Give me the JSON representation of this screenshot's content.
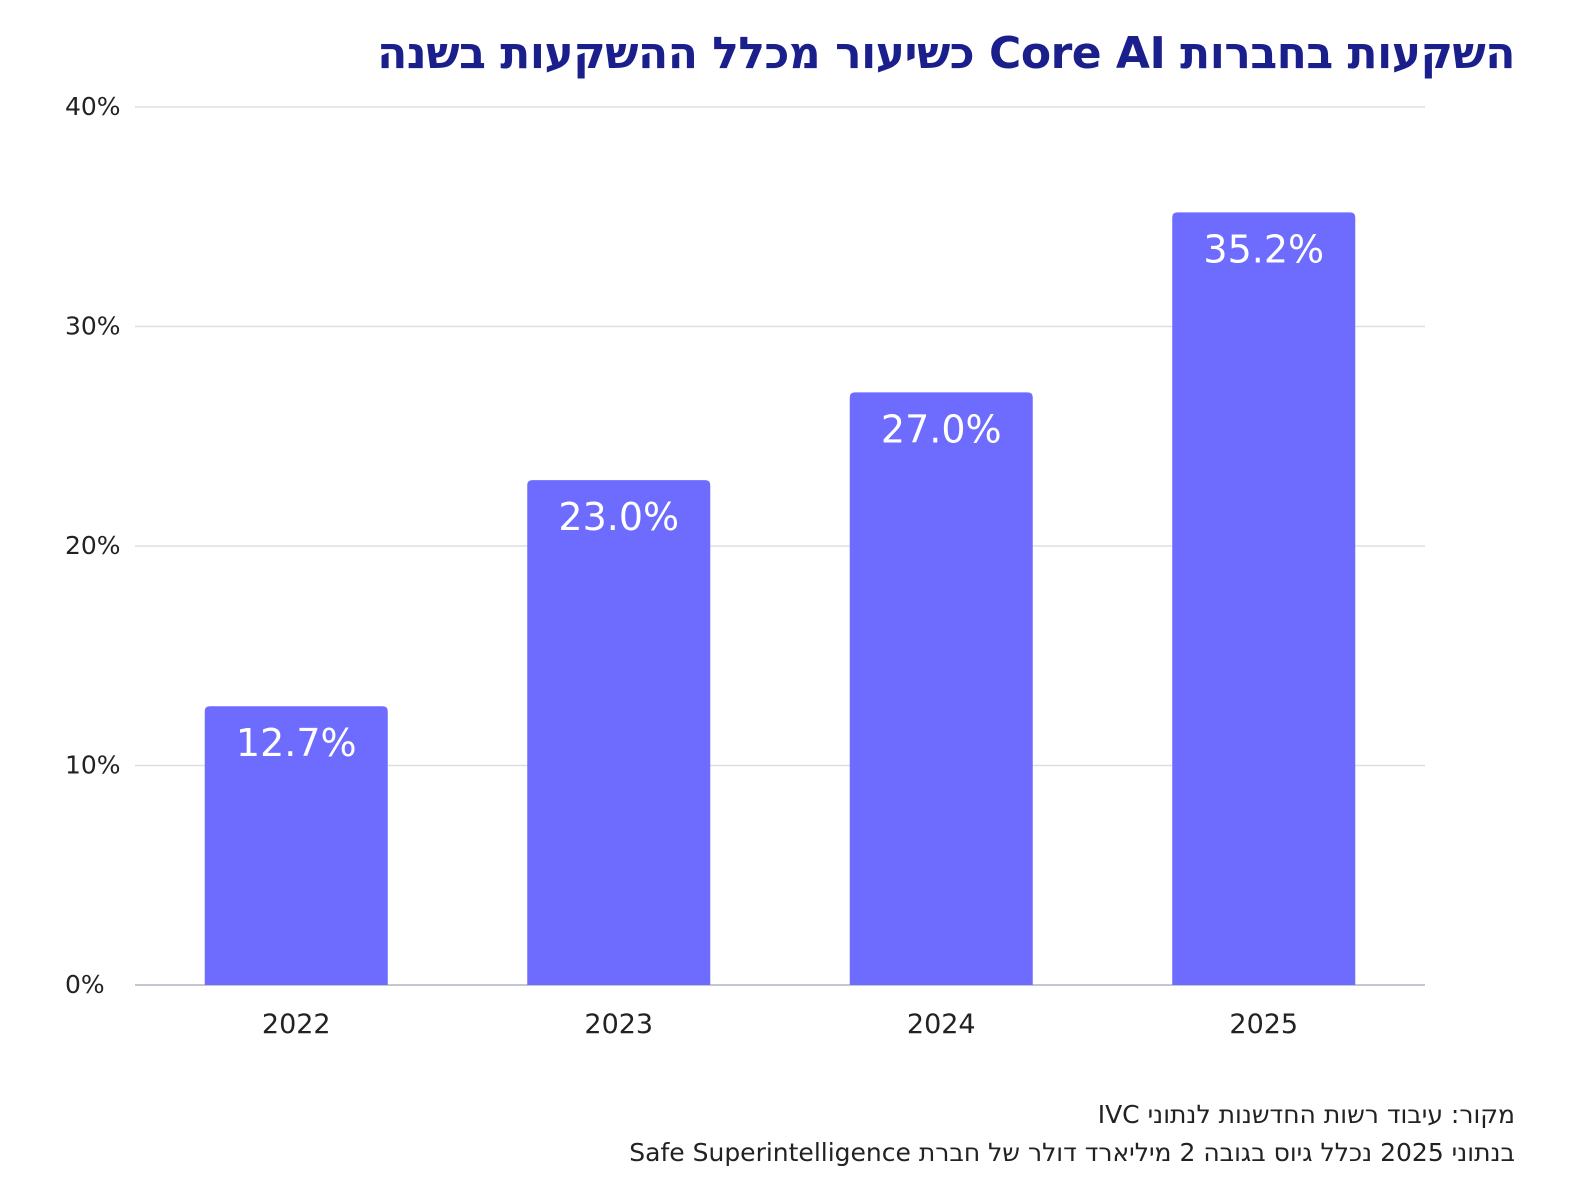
{
  "chart_data": {
    "type": "bar",
    "title": "השקעות בחברות Core AI כשיעור מכלל ההשקעות בשנה",
    "categories": [
      "2022",
      "2023",
      "2024",
      "2025"
    ],
    "values": [
      12.7,
      23.0,
      27.0,
      35.2
    ],
    "value_labels": [
      "12.7%",
      "23.0%",
      "27.0%",
      "35.2%"
    ],
    "y_ticks": [
      0,
      10,
      20,
      30,
      40
    ],
    "y_tick_labels": [
      "0%",
      "10%",
      "20%",
      "30%",
      "40%"
    ],
    "ylim": [
      0,
      40
    ],
    "grid": true,
    "legend": "none"
  },
  "colors": {
    "bar": "#6e6cff",
    "title": "#1a1f8c",
    "grid": "#dcdfe6",
    "axis": "#c4c7cf",
    "bar_label": "#ffffff",
    "text": "#222222"
  },
  "footnotes": {
    "source": "מקור: עיבוד רשות החדשנות לנתוני IVC",
    "note": "בנתוני 2025 נכלל גיוס בגובה 2 מיליארד דולר של חברת Safe Superintelligence"
  }
}
